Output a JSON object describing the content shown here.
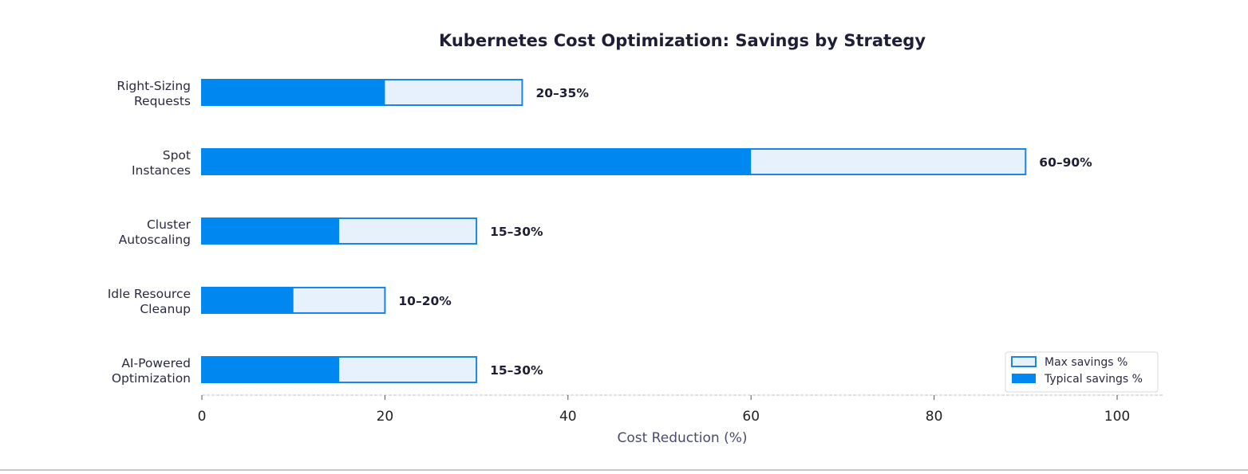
{
  "chart_data": {
    "type": "bar",
    "orientation": "horizontal",
    "title": "Kubernetes Cost Optimization: Savings by Strategy",
    "xlabel": "Cost Reduction (%)",
    "ylabel": "",
    "xlim": [
      0,
      105
    ],
    "xticks": [
      0,
      20,
      40,
      60,
      80,
      100
    ],
    "grid": false,
    "legend_position": "bottom-right",
    "categories": [
      [
        "Right-Sizing",
        "Requests"
      ],
      [
        "Spot",
        "Instances"
      ],
      [
        "Cluster",
        "Autoscaling"
      ],
      [
        "Idle Resource",
        "Cleanup"
      ],
      [
        "AI-Powered",
        "Optimization"
      ]
    ],
    "series": [
      {
        "name": "Max savings %",
        "values": [
          35,
          90,
          30,
          20,
          30
        ]
      },
      {
        "name": "Typical savings %",
        "values": [
          20,
          60,
          15,
          10,
          15
        ]
      }
    ],
    "range_labels": [
      "20–35%",
      "60–90%",
      "15–30%",
      "10–20%",
      "15–30%"
    ],
    "colors": {
      "typical": "#0088f0",
      "max_fill": "#e6f1fb",
      "max_edge": "#1a85e6",
      "title": "#1e1e37",
      "text": "#2a2a42",
      "xlabel": "#4a4a72",
      "axis": "#d5d5d5"
    }
  }
}
